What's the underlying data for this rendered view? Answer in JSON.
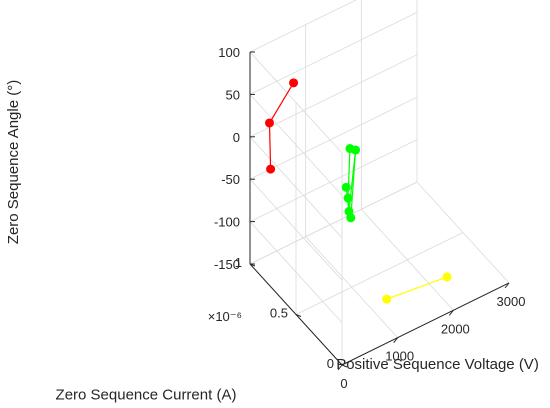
{
  "chart_data": {
    "type": "scatter3d",
    "xlabel": "Positive Sequence Voltage (V)",
    "ylabel": "Zero Sequence Current (A)",
    "zlabel": "Zero Sequence Angle (°)",
    "y_exponent_label": "×10⁻⁶",
    "xlim": [
      0,
      3000
    ],
    "ylim": [
      0,
      1
    ],
    "zlim": [
      -150,
      100
    ],
    "xticks": [
      "0",
      "1000",
      "2000",
      "3000"
    ],
    "yticks": [
      "0",
      "0.5",
      "1"
    ],
    "zticks": [
      "-150",
      "-100",
      "-50",
      "0",
      "50",
      "100"
    ],
    "grid": true,
    "series": [
      {
        "color": "#ff0000",
        "points": [
          {
            "x": 700,
            "y": 0.95,
            "z": 47
          },
          {
            "x": 350,
            "y": 1.0,
            "z": 5
          },
          {
            "x": 370,
            "y": 1.0,
            "z": -50
          }
        ],
        "path": [
          [
            0,
            1
          ],
          [
            1,
            2
          ]
        ]
      },
      {
        "color": "#00ff00",
        "points": [
          {
            "x": 1300,
            "y": 0.7,
            "z": -20
          },
          {
            "x": 1400,
            "y": 0.7,
            "z": -25
          },
          {
            "x": 1150,
            "y": 0.65,
            "z": -55
          },
          {
            "x": 1100,
            "y": 0.6,
            "z": -60
          },
          {
            "x": 1150,
            "y": 0.6,
            "z": -85
          },
          {
            "x": 1200,
            "y": 0.65,
            "z": -85
          }
        ],
        "path": [
          [
            0,
            1
          ],
          [
            1,
            5
          ],
          [
            0,
            3
          ],
          [
            3,
            4
          ],
          [
            2,
            5
          ],
          [
            1,
            4
          ]
        ]
      },
      {
        "color": "#ffff00",
        "points": [
          {
            "x": 2300,
            "y": 0.25,
            "z": -150
          },
          {
            "x": 1300,
            "y": 0.3,
            "z": -150
          }
        ],
        "path": [
          [
            0,
            1
          ]
        ]
      }
    ]
  }
}
